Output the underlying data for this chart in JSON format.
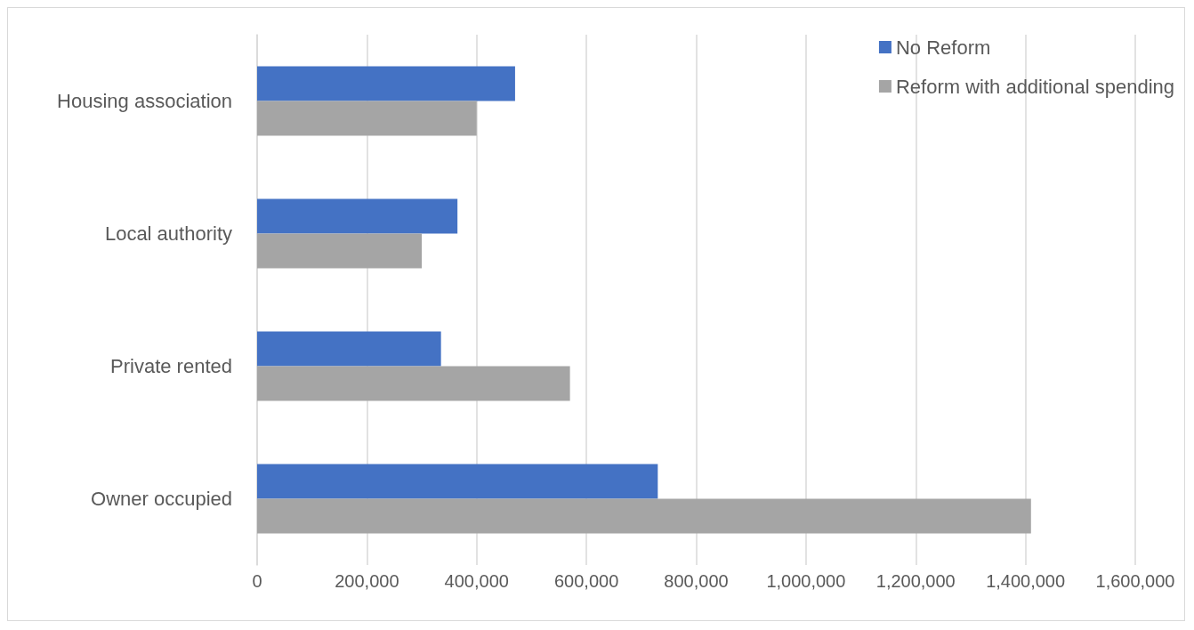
{
  "chart_data": {
    "type": "bar",
    "orientation": "horizontal",
    "categories": [
      "Housing association",
      "Local authority",
      "Private rented",
      "Owner occupied"
    ],
    "series": [
      {
        "name": "No Reform",
        "color": "#4472c4",
        "values": [
          470000,
          365000,
          335000,
          730000
        ]
      },
      {
        "name": "Reform with additional spending",
        "color": "#a5a5a5",
        "values": [
          400000,
          300000,
          570000,
          1410000
        ]
      }
    ],
    "xlim": [
      0,
      1600000
    ],
    "xticks": [
      0,
      {
        "value": 200000,
        "label": "200,000"
      },
      {
        "value": 400000,
        "label": "400,000"
      },
      {
        "value": 600000,
        "label": "600,000"
      },
      {
        "value": 800000,
        "label": "800,000"
      },
      {
        "value": 1000000,
        "label": "1,000,000"
      },
      {
        "value": 1200000,
        "label": "1,200,000"
      },
      {
        "value": 1400000,
        "label": "1,400,000"
      },
      {
        "value": 1600000,
        "label": "1,600,000"
      }
    ],
    "grid": "x",
    "legend": "top right"
  }
}
